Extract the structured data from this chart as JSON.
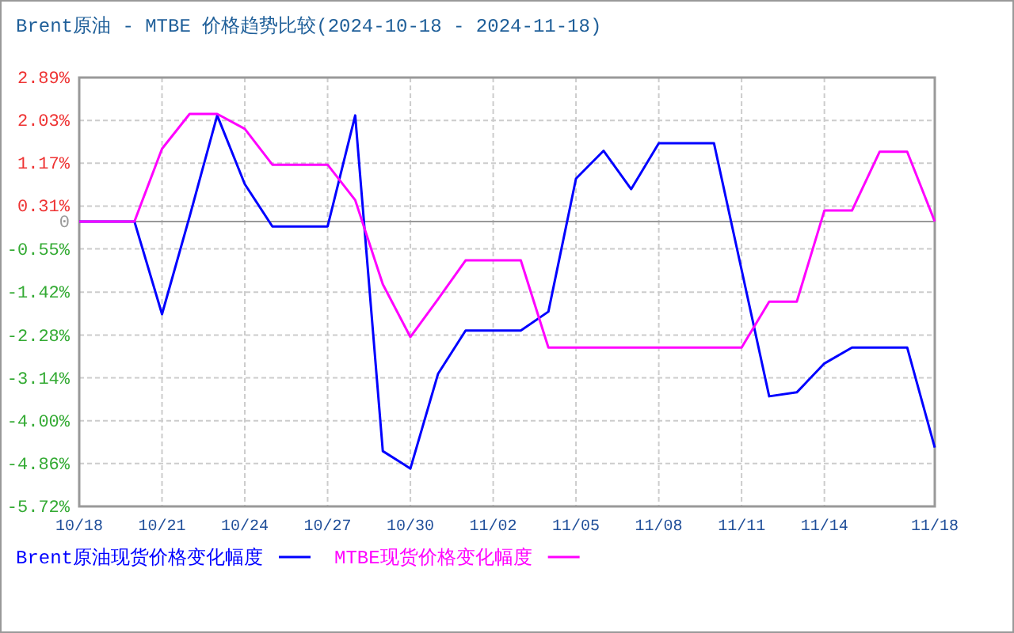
{
  "chart_data": {
    "type": "line",
    "title": "Brent原油 - MTBE 价格趋势比较(2024-10-18 - 2024-11-18)",
    "categories": [
      "10/18",
      null,
      null,
      "10/21",
      null,
      null,
      "10/24",
      null,
      null,
      "10/27",
      null,
      null,
      "10/30",
      null,
      null,
      "11/02",
      null,
      null,
      "11/05",
      null,
      null,
      "11/08",
      null,
      null,
      "11/11",
      null,
      null,
      "11/14",
      null,
      null,
      null,
      "11/18"
    ],
    "series": [
      {
        "name": "Brent原油现货价格变化幅度",
        "color": "#0000ff",
        "values": [
          0,
          0,
          0,
          -1.86,
          0.1,
          2.13,
          0.75,
          -0.1,
          -0.1,
          -0.1,
          2.13,
          -4.61,
          -4.96,
          -3.06,
          -2.19,
          -2.19,
          -2.19,
          -1.81,
          0.86,
          1.42,
          0.65,
          1.57,
          1.57,
          1.57,
          -0.97,
          -3.51,
          -3.43,
          -2.85,
          -2.53,
          -2.53,
          -2.53,
          -4.54
        ]
      },
      {
        "name": "MTBE现货价格变化幅度",
        "color": "#ff00ff",
        "values": [
          0,
          0,
          0,
          1.46,
          2.16,
          2.16,
          1.86,
          1.14,
          1.14,
          1.14,
          0.43,
          -1.26,
          -2.32,
          -1.56,
          -0.78,
          -0.78,
          -0.78,
          -2.53,
          -2.53,
          -2.53,
          -2.53,
          -2.53,
          -2.53,
          -2.53,
          -2.53,
          -1.61,
          -1.61,
          0.22,
          0.22,
          1.4,
          1.4,
          0
        ]
      }
    ],
    "ylim": [
      -5.72,
      2.89
    ],
    "yticks": [
      {
        "value": 2.89,
        "label": "2.89%"
      },
      {
        "value": 2.03,
        "label": "2.03%"
      },
      {
        "value": 1.17,
        "label": "1.17%"
      },
      {
        "value": 0.31,
        "label": "0.31%"
      },
      0,
      {
        "value": -0.55,
        "label": "-0.55%"
      },
      {
        "value": -1.42,
        "label": "-1.42%"
      },
      {
        "value": -2.28,
        "label": "-2.28%"
      },
      {
        "value": -3.14,
        "label": "-3.14%"
      },
      {
        "value": -4.0,
        "label": "-4.00%"
      },
      {
        "value": -4.86,
        "label": "-4.86%"
      },
      {
        "value": -5.72,
        "label": "-5.72%"
      }
    ],
    "ref_lines": [
      {
        "axis": "y",
        "value": 0,
        "color": "#999999"
      }
    ],
    "grid": true,
    "legend": "bottom",
    "marker": "none",
    "line_style": "solid"
  }
}
